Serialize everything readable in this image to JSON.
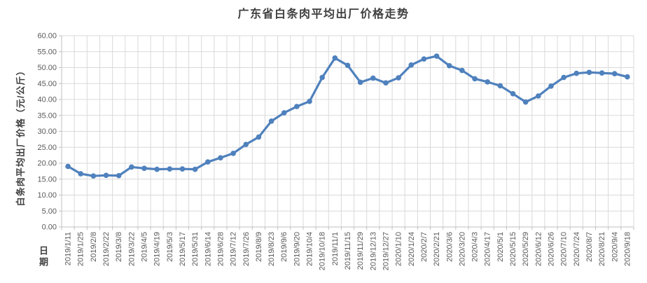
{
  "chart_data": {
    "type": "line",
    "title": "广东省白条肉平均出厂价格走势",
    "xlabel": "日期",
    "ylabel": "白条肉平均出厂价格（元/公斤）",
    "ylim": [
      0,
      60
    ],
    "ytick_step": 5,
    "ytick_labels": [
      "0.00",
      "5.00",
      "10.00",
      "15.00",
      "20.00",
      "25.00",
      "30.00",
      "35.00",
      "40.00",
      "45.00",
      "50.00",
      "55.00",
      "60.00"
    ],
    "grid": true,
    "legend": "none",
    "line_color": "#4F81BD",
    "grid_color": "#D9D9D9",
    "axis_color": "#BFBFBF",
    "tick_label_color": "#595959",
    "categories": [
      "2019/1/11",
      "2019/1/25",
      "2019/2/8",
      "2019/2/22",
      "2019/3/8",
      "2019/3/22",
      "2019/4/5",
      "2019/4/19",
      "2019/5/3",
      "2019/5/17",
      "2019/5/31",
      "2019/6/14",
      "2019/6/28",
      "2019/7/12",
      "2019/7/26",
      "2019/8/9",
      "2019/8/23",
      "2019/9/6",
      "2019/9/20",
      "2019/10/4",
      "2019/10/18",
      "2019/11/1",
      "2019/11/15",
      "2019/11/29",
      "2019/12/13",
      "2019/12/27",
      "2020/1/10",
      "2020/1/24",
      "2020/2/7",
      "2020/2/21",
      "2020/3/6",
      "2020/3/20",
      "2020/4/3",
      "2020/4/17",
      "2020/5/1",
      "2020/5/15",
      "2020/5/29",
      "2020/6/12",
      "2020/6/26",
      "2020/7/10",
      "2020/7/24",
      "2020/8/7",
      "2020/8/21",
      "2020/9/4",
      "2020/9/18"
    ],
    "values": [
      19.0,
      16.7,
      16.0,
      16.2,
      16.1,
      18.8,
      18.4,
      18.1,
      18.2,
      18.2,
      18.1,
      20.4,
      21.7,
      23.1,
      25.9,
      28.2,
      33.2,
      35.8,
      37.8,
      39.4,
      46.9,
      53.0,
      50.7,
      45.4,
      46.7,
      45.2,
      46.8,
      50.8,
      52.7,
      53.6,
      50.6,
      49.1,
      46.5,
      45.5,
      44.3,
      41.8,
      39.2,
      41.1,
      44.2,
      46.9,
      48.2,
      48.5,
      48.3,
      48.1,
      47.1
    ]
  }
}
